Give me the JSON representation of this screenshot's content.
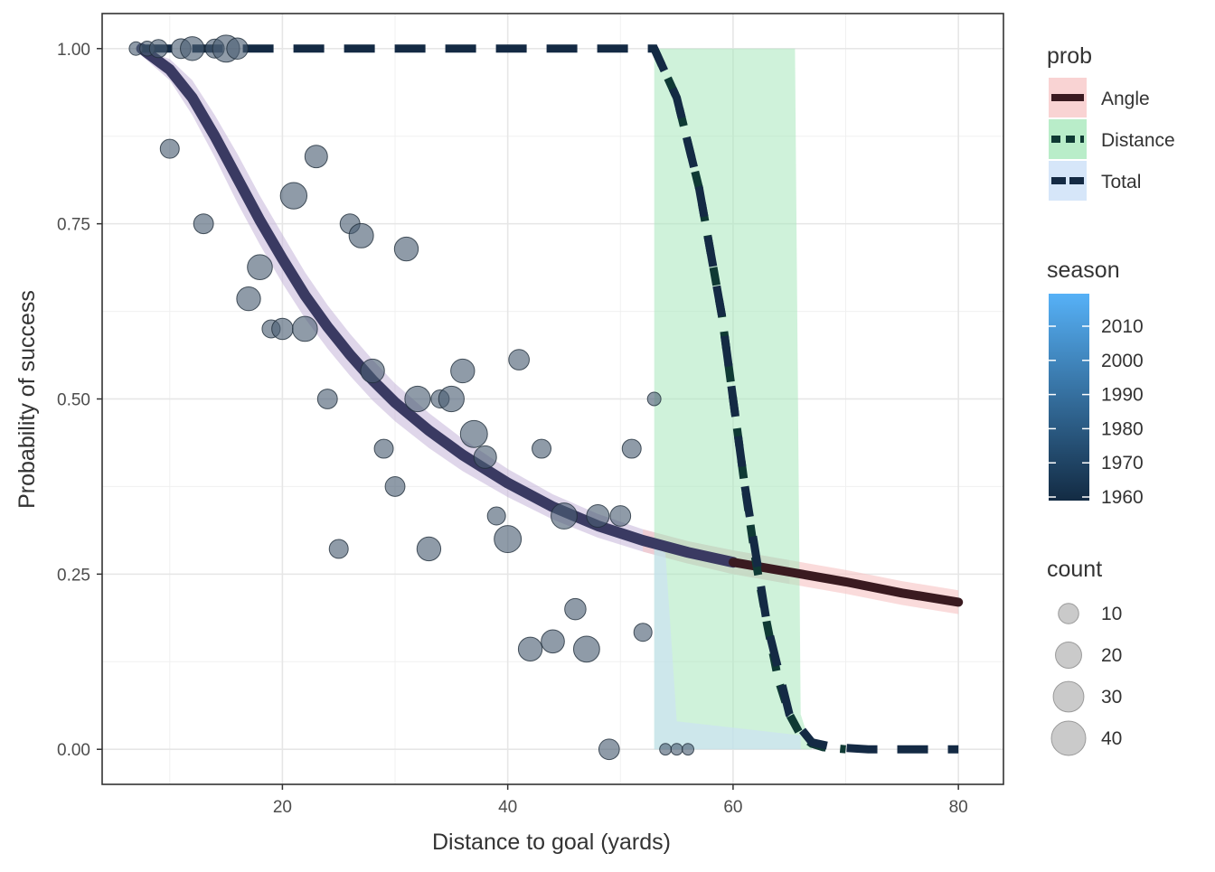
{
  "chart_data": {
    "type": "scatter",
    "xlabel": "Distance to goal (yards)",
    "ylabel": "Probability of success",
    "xlim": [
      4,
      84
    ],
    "ylim": [
      -0.05,
      1.05
    ],
    "x_ticks": [
      20,
      40,
      60,
      80
    ],
    "x_tick_labels": [
      "20",
      "40",
      "60",
      "80"
    ],
    "y_ticks": [
      0,
      0.25,
      0.5,
      0.75,
      1
    ],
    "y_tick_labels": [
      "0.00",
      "0.25",
      "0.50",
      "0.75",
      "1.00"
    ],
    "grid": true,
    "colors": {
      "angle_line": "#3a1a20",
      "angle_band": "#f8c8c8",
      "distance_line": "#0f3a34",
      "distance_band": "#a8e8bc",
      "total_line": "#142a44",
      "total_band": "#cce0f7",
      "angle_main_line": "#3a3a62",
      "angle_main_band": "#c4b4d8",
      "points": "#4a5e72"
    },
    "series": [
      {
        "name": "Angle",
        "style": "solid",
        "x": [
          7.5,
          10,
          12,
          14,
          16,
          18,
          20,
          22,
          24,
          26,
          28,
          30,
          33,
          36,
          40,
          44,
          48,
          52,
          56,
          60,
          65,
          70,
          75,
          80
        ],
        "y": [
          1.0,
          0.97,
          0.93,
          0.875,
          0.815,
          0.755,
          0.7,
          0.648,
          0.603,
          0.563,
          0.527,
          0.495,
          0.455,
          0.42,
          0.38,
          0.346,
          0.319,
          0.298,
          0.281,
          0.267,
          0.253,
          0.239,
          0.223,
          0.21
        ],
        "band_lower": [
          0.99,
          0.955,
          0.905,
          0.845,
          0.78,
          0.72,
          0.665,
          0.615,
          0.572,
          0.533,
          0.498,
          0.468,
          0.43,
          0.397,
          0.36,
          0.328,
          0.302,
          0.282,
          0.265,
          0.25,
          0.236,
          0.222,
          0.206,
          0.193
        ],
        "band_upper": [
          1.0,
          0.985,
          0.955,
          0.905,
          0.85,
          0.79,
          0.735,
          0.681,
          0.634,
          0.593,
          0.556,
          0.522,
          0.48,
          0.443,
          0.4,
          0.364,
          0.336,
          0.314,
          0.297,
          0.284,
          0.27,
          0.256,
          0.24,
          0.227
        ]
      },
      {
        "name": "Distance",
        "style": "dashed",
        "x": [
          53,
          55,
          57,
          59,
          60,
          61,
          62,
          63,
          64,
          65,
          66,
          67,
          68,
          70
        ],
        "y": [
          1.0,
          0.93,
          0.8,
          0.62,
          0.5,
          0.38,
          0.27,
          0.18,
          0.1,
          0.05,
          0.02,
          0.008,
          0.003,
          0.0
        ],
        "band_x": [
          53,
          65.5,
          66,
          67
        ],
        "band_lower": [
          0,
          0,
          0,
          0
        ],
        "band_upper": [
          1,
          1,
          0.05,
          0
        ]
      },
      {
        "name": "Total",
        "style": "longdash",
        "x": [
          7.5,
          15,
          25,
          35,
          45,
          53,
          55,
          57,
          59,
          61,
          63,
          65,
          67,
          69,
          72,
          76,
          80
        ],
        "y": [
          1.0,
          1.0,
          1.0,
          1.0,
          1.0,
          1.0,
          0.93,
          0.8,
          0.62,
          0.38,
          0.18,
          0.05,
          0.01,
          0.003,
          0.0,
          0.0,
          0.0
        ],
        "band_x": [
          53,
          54,
          55,
          66
        ],
        "band_lower": [
          0,
          0,
          0,
          0
        ],
        "band_upper": [
          0.29,
          0.28,
          0.04,
          0.02
        ]
      }
    ],
    "points": [
      {
        "x": 7,
        "y": 1.0,
        "n": 2
      },
      {
        "x": 8,
        "y": 1.0,
        "n": 3
      },
      {
        "x": 9,
        "y": 1.0,
        "n": 6
      },
      {
        "x": 11,
        "y": 1.0,
        "n": 8
      },
      {
        "x": 12,
        "y": 1.0,
        "n": 14
      },
      {
        "x": 14,
        "y": 1.0,
        "n": 7
      },
      {
        "x": 15,
        "y": 1.0,
        "n": 20
      },
      {
        "x": 16,
        "y": 1.0,
        "n": 10
      },
      {
        "x": 10,
        "y": 0.857,
        "n": 7
      },
      {
        "x": 13,
        "y": 0.75,
        "n": 8
      },
      {
        "x": 17,
        "y": 0.643,
        "n": 14
      },
      {
        "x": 18,
        "y": 0.688,
        "n": 16
      },
      {
        "x": 19,
        "y": 0.6,
        "n": 6
      },
      {
        "x": 20,
        "y": 0.6,
        "n": 10
      },
      {
        "x": 21,
        "y": 0.79,
        "n": 19
      },
      {
        "x": 22,
        "y": 0.6,
        "n": 16
      },
      {
        "x": 23,
        "y": 0.846,
        "n": 12
      },
      {
        "x": 24,
        "y": 0.5,
        "n": 8
      },
      {
        "x": 25,
        "y": 0.286,
        "n": 7
      },
      {
        "x": 26,
        "y": 0.75,
        "n": 8
      },
      {
        "x": 27,
        "y": 0.733,
        "n": 15
      },
      {
        "x": 28,
        "y": 0.54,
        "n": 14
      },
      {
        "x": 29,
        "y": 0.429,
        "n": 7
      },
      {
        "x": 30,
        "y": 0.375,
        "n": 8
      },
      {
        "x": 31,
        "y": 0.714,
        "n": 14
      },
      {
        "x": 32,
        "y": 0.5,
        "n": 17
      },
      {
        "x": 33,
        "y": 0.286,
        "n": 14
      },
      {
        "x": 34,
        "y": 0.5,
        "n": 6
      },
      {
        "x": 35,
        "y": 0.5,
        "n": 17
      },
      {
        "x": 36,
        "y": 0.54,
        "n": 14
      },
      {
        "x": 37,
        "y": 0.45,
        "n": 20
      },
      {
        "x": 38,
        "y": 0.417,
        "n": 12
      },
      {
        "x": 39,
        "y": 0.333,
        "n": 6
      },
      {
        "x": 40,
        "y": 0.3,
        "n": 20
      },
      {
        "x": 41,
        "y": 0.556,
        "n": 9
      },
      {
        "x": 42,
        "y": 0.143,
        "n": 14
      },
      {
        "x": 43,
        "y": 0.429,
        "n": 7
      },
      {
        "x": 44,
        "y": 0.154,
        "n": 13
      },
      {
        "x": 45,
        "y": 0.333,
        "n": 18
      },
      {
        "x": 46,
        "y": 0.2,
        "n": 10
      },
      {
        "x": 47,
        "y": 0.143,
        "n": 18
      },
      {
        "x": 48,
        "y": 0.333,
        "n": 12
      },
      {
        "x": 49,
        "y": 0.0,
        "n": 9
      },
      {
        "x": 50,
        "y": 0.333,
        "n": 9
      },
      {
        "x": 51,
        "y": 0.429,
        "n": 7
      },
      {
        "x": 52,
        "y": 0.167,
        "n": 6
      },
      {
        "x": 53,
        "y": 0.5,
        "n": 2
      },
      {
        "x": 54,
        "y": 0.0,
        "n": 1
      },
      {
        "x": 55,
        "y": 0.0,
        "n": 1
      },
      {
        "x": 56,
        "y": 0.0,
        "n": 1
      }
    ],
    "legend": {
      "placement": "right",
      "prob": {
        "title": "prob",
        "entries": [
          "Angle",
          "Distance",
          "Total"
        ]
      },
      "season": {
        "title": "season",
        "ticks": [
          "2010",
          "2000",
          "1990",
          "1980",
          "1970",
          "1960"
        ],
        "colors": [
          "#56b1f7",
          "#132b43"
        ]
      },
      "count": {
        "title": "count",
        "entries": [
          "10",
          "20",
          "30",
          "40"
        ],
        "values": [
          10,
          20,
          30,
          40
        ]
      }
    }
  }
}
